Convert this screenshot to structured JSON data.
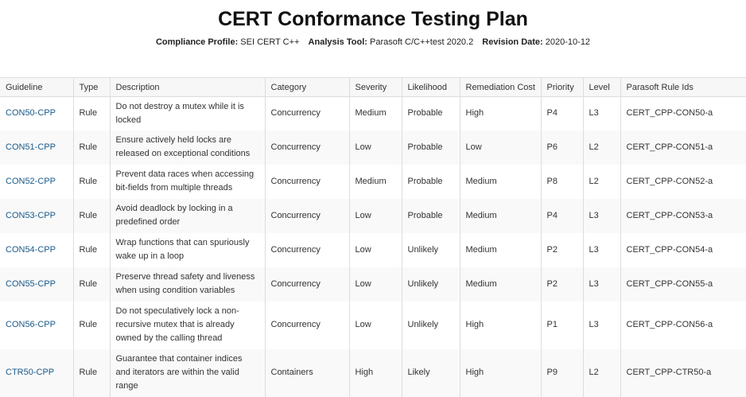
{
  "page": {
    "title": "CERT Conformance Testing Plan",
    "meta": [
      {
        "key": "Compliance Profile:",
        "value": "SEI CERT C++"
      },
      {
        "key": "Analysis Tool:",
        "value": "Parasoft C/C++test 2020.2"
      },
      {
        "key": "Revision Date:",
        "value": "2020-10-12"
      }
    ]
  },
  "table": {
    "headers": [
      "Guideline",
      "Type",
      "Description",
      "Category",
      "Severity",
      "Likelihood",
      "Remediation Cost",
      "Priority",
      "Level",
      "Parasoft Rule Ids"
    ],
    "rows": [
      [
        "CON50-CPP",
        "Rule",
        "Do not destroy a mutex while it is locked",
        "Concurrency",
        "Medium",
        "Probable",
        "High",
        "P4",
        "L3",
        "CERT_CPP-CON50-a"
      ],
      [
        "CON51-CPP",
        "Rule",
        "Ensure actively held locks are released on exceptional conditions",
        "Concurrency",
        "Low",
        "Probable",
        "Low",
        "P6",
        "L2",
        "CERT_CPP-CON51-a"
      ],
      [
        "CON52-CPP",
        "Rule",
        "Prevent data races when accessing bit-fields from multiple threads",
        "Concurrency",
        "Medium",
        "Probable",
        "Medium",
        "P8",
        "L2",
        "CERT_CPP-CON52-a"
      ],
      [
        "CON53-CPP",
        "Rule",
        "Avoid deadlock by locking in a predefined order",
        "Concurrency",
        "Low",
        "Probable",
        "Medium",
        "P4",
        "L3",
        "CERT_CPP-CON53-a"
      ],
      [
        "CON54-CPP",
        "Rule",
        "Wrap functions that can spuriously wake up in a loop",
        "Concurrency",
        "Low",
        "Unlikely",
        "Medium",
        "P2",
        "L3",
        "CERT_CPP-CON54-a"
      ],
      [
        "CON55-CPP",
        "Rule",
        "Preserve thread safety and liveness when using condition variables",
        "Concurrency",
        "Low",
        "Unlikely",
        "Medium",
        "P2",
        "L3",
        "CERT_CPP-CON55-a"
      ],
      [
        "CON56-CPP",
        "Rule",
        "Do not speculatively lock a non-recursive mutex that is already owned by the calling thread",
        "Concurrency",
        "Low",
        "Unlikely",
        "High",
        "P1",
        "L3",
        "CERT_CPP-CON56-a"
      ],
      [
        "CTR50-CPP",
        "Rule",
        "Guarantee that container indices and iterators are within the valid range",
        "Containers",
        "High",
        "Likely",
        "High",
        "P9",
        "L2",
        "CERT_CPP-CTR50-a"
      ]
    ]
  }
}
